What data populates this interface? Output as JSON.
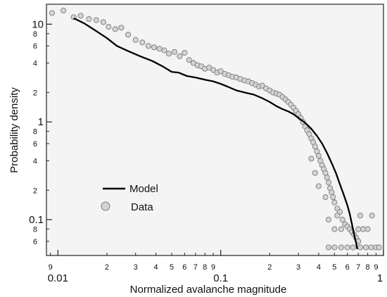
{
  "chart_data": {
    "type": "scatter",
    "title": "",
    "xlabel": "Normalized avalanche magnitude",
    "ylabel": "Probability density",
    "xscale": "log",
    "yscale": "log",
    "xlim": [
      0.0085,
      1.0
    ],
    "ylim": [
      0.043,
      16.0
    ],
    "grid": false,
    "legend": {
      "placement": "lower-left",
      "entries": [
        "Model",
        "Data"
      ]
    },
    "x_ticks": {
      "major": [
        {
          "value": 0.01,
          "label": "0.01"
        },
        {
          "value": 0.1,
          "label": "0.1"
        },
        {
          "value": 1,
          "label": "1"
        }
      ],
      "minor": [
        {
          "value": 0.009,
          "label": "9"
        },
        {
          "value": 0.02,
          "label": "2"
        },
        {
          "value": 0.03,
          "label": "3"
        },
        {
          "value": 0.04,
          "label": "4"
        },
        {
          "value": 0.05,
          "label": "5"
        },
        {
          "value": 0.06,
          "label": "6"
        },
        {
          "value": 0.07,
          "label": "7"
        },
        {
          "value": 0.08,
          "label": "8"
        },
        {
          "value": 0.09,
          "label": "9"
        },
        {
          "value": 0.2,
          "label": "2"
        },
        {
          "value": 0.3,
          "label": "3"
        },
        {
          "value": 0.4,
          "label": "4"
        },
        {
          "value": 0.5,
          "label": "5"
        },
        {
          "value": 0.6,
          "label": "6"
        },
        {
          "value": 0.7,
          "label": "7"
        },
        {
          "value": 0.8,
          "label": "8"
        },
        {
          "value": 0.9,
          "label": "9"
        }
      ]
    },
    "y_ticks": {
      "major": [
        {
          "value": 0.1,
          "label": "0.1"
        },
        {
          "value": 1,
          "label": "1"
        },
        {
          "value": 10,
          "label": "10"
        }
      ],
      "minor": [
        {
          "value": 0.06,
          "label": "6"
        },
        {
          "value": 0.08,
          "label": "8"
        },
        {
          "value": 0.2,
          "label": "2"
        },
        {
          "value": 0.4,
          "label": "4"
        },
        {
          "value": 0.6,
          "label": "6"
        },
        {
          "value": 0.8,
          "label": "8"
        },
        {
          "value": 2,
          "label": "2"
        },
        {
          "value": 4,
          "label": "4"
        },
        {
          "value": 6,
          "label": "6"
        },
        {
          "value": 8,
          "label": "8"
        }
      ]
    },
    "series": [
      {
        "name": "Model",
        "kind": "line",
        "color": "#000000",
        "points": [
          [
            0.0125,
            11.5
          ],
          [
            0.0145,
            10.2
          ],
          [
            0.017,
            8.6
          ],
          [
            0.02,
            7.2
          ],
          [
            0.023,
            6.0
          ],
          [
            0.027,
            5.3
          ],
          [
            0.032,
            4.7
          ],
          [
            0.038,
            4.2
          ],
          [
            0.044,
            3.7
          ],
          [
            0.05,
            3.25
          ],
          [
            0.055,
            3.2
          ],
          [
            0.062,
            2.95
          ],
          [
            0.07,
            2.85
          ],
          [
            0.08,
            2.7
          ],
          [
            0.09,
            2.6
          ],
          [
            0.1,
            2.45
          ],
          [
            0.11,
            2.3
          ],
          [
            0.125,
            2.1
          ],
          [
            0.14,
            2.0
          ],
          [
            0.16,
            1.9
          ],
          [
            0.18,
            1.75
          ],
          [
            0.2,
            1.6
          ],
          [
            0.22,
            1.45
          ],
          [
            0.24,
            1.35
          ],
          [
            0.26,
            1.28
          ],
          [
            0.28,
            1.2
          ],
          [
            0.3,
            1.1
          ],
          [
            0.33,
            0.98
          ],
          [
            0.36,
            0.85
          ],
          [
            0.39,
            0.72
          ],
          [
            0.42,
            0.6
          ],
          [
            0.45,
            0.48
          ],
          [
            0.48,
            0.38
          ],
          [
            0.51,
            0.3
          ],
          [
            0.54,
            0.23
          ],
          [
            0.57,
            0.18
          ],
          [
            0.6,
            0.14
          ],
          [
            0.62,
            0.115
          ],
          [
            0.64,
            0.09
          ],
          [
            0.66,
            0.07
          ],
          [
            0.68,
            0.057
          ],
          [
            0.69,
            0.05
          ]
        ]
      },
      {
        "name": "Data",
        "kind": "scatter",
        "color": "#d4d4d4",
        "edge": "#7a7a7a",
        "points": [
          [
            0.0092,
            13.0
          ],
          [
            0.0108,
            13.8
          ],
          [
            0.0125,
            11.8
          ],
          [
            0.0138,
            12.2
          ],
          [
            0.0155,
            11.3
          ],
          [
            0.0172,
            11.0
          ],
          [
            0.019,
            10.5
          ],
          [
            0.0205,
            9.4
          ],
          [
            0.0225,
            8.9
          ],
          [
            0.0245,
            9.2
          ],
          [
            0.027,
            7.8
          ],
          [
            0.03,
            6.9
          ],
          [
            0.033,
            6.5
          ],
          [
            0.036,
            6.0
          ],
          [
            0.039,
            5.8
          ],
          [
            0.042,
            5.6
          ],
          [
            0.045,
            5.4
          ],
          [
            0.048,
            5.0
          ],
          [
            0.052,
            5.2
          ],
          [
            0.056,
            4.7
          ],
          [
            0.06,
            5.1
          ],
          [
            0.064,
            4.3
          ],
          [
            0.068,
            4.0
          ],
          [
            0.072,
            3.8
          ],
          [
            0.076,
            3.7
          ],
          [
            0.08,
            3.5
          ],
          [
            0.085,
            3.6
          ],
          [
            0.09,
            3.4
          ],
          [
            0.095,
            3.2
          ],
          [
            0.1,
            3.3
          ],
          [
            0.106,
            3.1
          ],
          [
            0.112,
            3.0
          ],
          [
            0.118,
            2.9
          ],
          [
            0.125,
            2.85
          ],
          [
            0.132,
            2.75
          ],
          [
            0.14,
            2.65
          ],
          [
            0.148,
            2.6
          ],
          [
            0.156,
            2.5
          ],
          [
            0.164,
            2.4
          ],
          [
            0.172,
            2.3
          ],
          [
            0.18,
            2.35
          ],
          [
            0.19,
            2.2
          ],
          [
            0.2,
            2.1
          ],
          [
            0.21,
            2.0
          ],
          [
            0.22,
            1.95
          ],
          [
            0.23,
            1.9
          ],
          [
            0.24,
            1.8
          ],
          [
            0.25,
            1.7
          ],
          [
            0.26,
            1.6
          ],
          [
            0.27,
            1.5
          ],
          [
            0.28,
            1.4
          ],
          [
            0.29,
            1.3
          ],
          [
            0.3,
            1.2
          ],
          [
            0.31,
            1.1
          ],
          [
            0.32,
            1.0
          ],
          [
            0.33,
            0.9
          ],
          [
            0.34,
            0.82
          ],
          [
            0.35,
            0.75
          ],
          [
            0.36,
            0.68
          ],
          [
            0.37,
            0.62
          ],
          [
            0.38,
            0.56
          ],
          [
            0.39,
            0.5
          ],
          [
            0.4,
            0.45
          ],
          [
            0.41,
            0.4
          ],
          [
            0.42,
            0.36
          ],
          [
            0.43,
            0.33
          ],
          [
            0.44,
            0.3
          ],
          [
            0.45,
            0.27
          ],
          [
            0.46,
            0.24
          ],
          [
            0.47,
            0.21
          ],
          [
            0.48,
            0.19
          ],
          [
            0.49,
            0.17
          ],
          [
            0.5,
            0.15
          ],
          [
            0.52,
            0.13
          ],
          [
            0.54,
            0.12
          ],
          [
            0.56,
            0.1
          ],
          [
            0.58,
            0.09
          ],
          [
            0.6,
            0.085
          ],
          [
            0.62,
            0.08
          ],
          [
            0.64,
            0.075
          ],
          [
            0.66,
            0.07
          ],
          [
            0.68,
            0.065
          ],
          [
            0.7,
            0.06
          ],
          [
            0.5,
            0.052
          ],
          [
            0.55,
            0.052
          ],
          [
            0.6,
            0.052
          ],
          [
            0.65,
            0.052
          ],
          [
            0.72,
            0.052
          ],
          [
            0.78,
            0.052
          ],
          [
            0.84,
            0.052
          ],
          [
            0.9,
            0.052
          ],
          [
            0.94,
            0.052
          ],
          [
            0.46,
            0.052
          ],
          [
            0.5,
            0.08
          ],
          [
            0.55,
            0.08
          ],
          [
            0.7,
            0.08
          ],
          [
            0.75,
            0.08
          ],
          [
            0.8,
            0.08
          ],
          [
            0.46,
            0.1
          ],
          [
            0.52,
            0.11
          ],
          [
            0.72,
            0.11
          ],
          [
            0.85,
            0.11
          ],
          [
            0.4,
            0.22
          ],
          [
            0.44,
            0.17
          ],
          [
            0.38,
            0.3
          ],
          [
            0.36,
            0.42
          ]
        ]
      }
    ]
  }
}
